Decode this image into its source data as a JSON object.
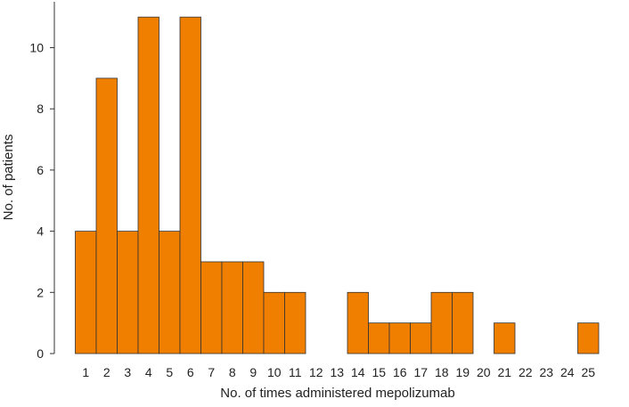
{
  "chart_data": {
    "type": "bar",
    "categories": [
      "1",
      "2",
      "3",
      "4",
      "5",
      "6",
      "7",
      "8",
      "9",
      "10",
      "11",
      "12",
      "13",
      "14",
      "15",
      "16",
      "17",
      "18",
      "19",
      "20",
      "21",
      "22",
      "23",
      "24",
      "25"
    ],
    "values": [
      4,
      9,
      4,
      11,
      4,
      11,
      3,
      3,
      3,
      2,
      2,
      0,
      0,
      2,
      1,
      1,
      1,
      2,
      2,
      0,
      1,
      0,
      0,
      0,
      1
    ],
    "title": "",
    "xlabel": "No. of times administered mepolizumab",
    "ylabel": "No. of patients",
    "ylim": [
      0,
      11.5
    ],
    "yticks": [
      0,
      2,
      4,
      6,
      8,
      10
    ],
    "grid": false,
    "bar_color": "#f07f00",
    "edge_color": "#333333"
  }
}
